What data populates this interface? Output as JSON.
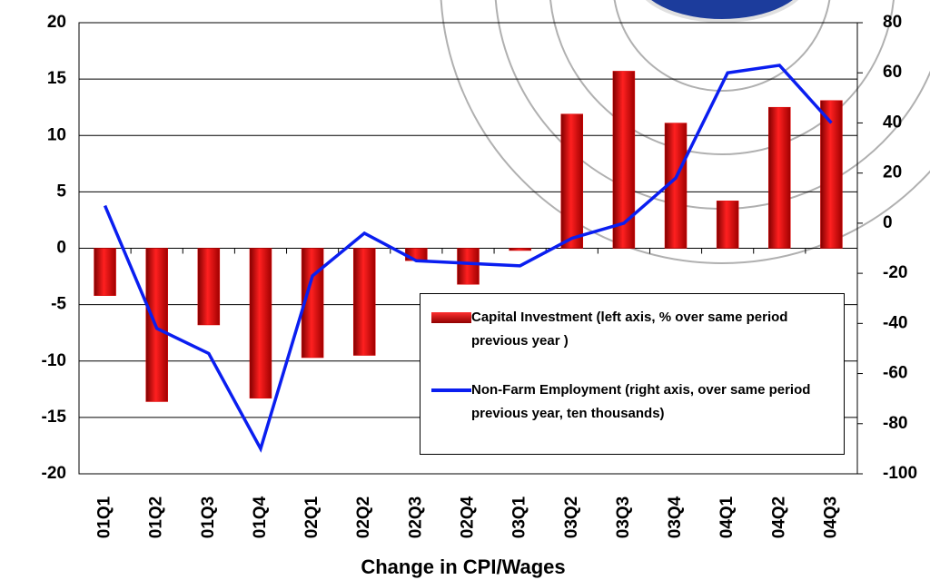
{
  "chart_data": {
    "type": "bar",
    "x_label": "Change in CPI/Wages",
    "categories": [
      "01Q1",
      "01Q2",
      "01Q3",
      "01Q4",
      "02Q1",
      "02Q2",
      "02Q3",
      "02Q4",
      "03Q1",
      "03Q2",
      "03Q3",
      "03Q4",
      "04Q1",
      "04Q2",
      "04Q3"
    ],
    "series": [
      {
        "name": "Capital Investment (left axis, % over same period previous year )",
        "type": "bar",
        "color": "#e00000",
        "values": [
          -4.2,
          -13.6,
          -6.8,
          -13.3,
          -9.7,
          -9.5,
          -1.1,
          -3.2,
          -0.2,
          11.9,
          15.7,
          11.1,
          4.2,
          12.5,
          13.1
        ]
      },
      {
        "name": "Non-Farm Employment (right axis, over same period previous year, ten thousands)",
        "type": "line",
        "axis": "y2",
        "color": "#0a1ef0",
        "values": [
          7,
          -42,
          -52,
          -90,
          -21,
          -4,
          -15,
          -16,
          -17,
          -6,
          0,
          18,
          60,
          63,
          40
        ]
      }
    ],
    "ylim": [
      -20,
      20
    ],
    "yticks": [
      -20,
      -15,
      -10,
      -5,
      0,
      5,
      10,
      15,
      20
    ],
    "y2lim": [
      -100,
      80
    ],
    "y2ticks": [
      -100,
      -80,
      -60,
      -40,
      -20,
      0,
      20,
      40,
      60,
      80
    ],
    "grid": true,
    "legend": "lower right"
  }
}
